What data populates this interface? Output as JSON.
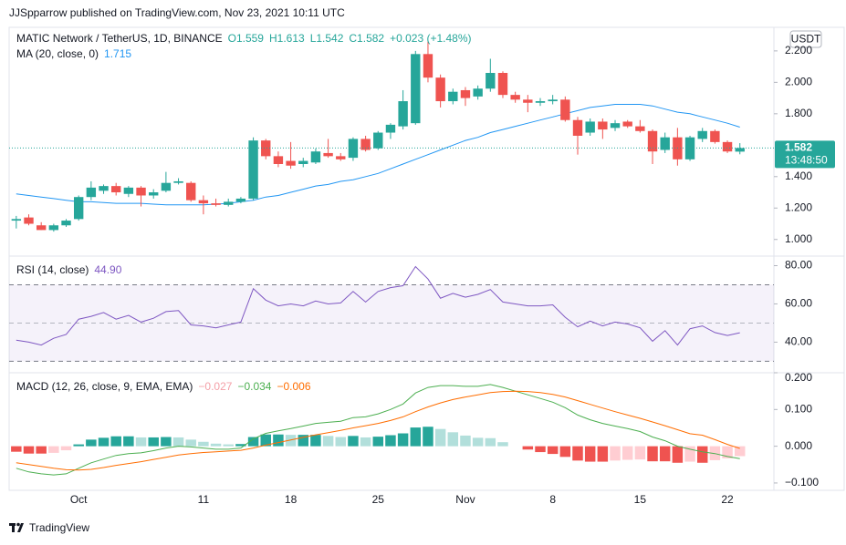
{
  "header": {
    "byline": "JJSpparrow published on TradingView.com, Nov 23, 2021 10:11 UTC",
    "brand": "TradingView"
  },
  "chart_data": [
    {
      "type": "candlestick",
      "title": "MATIC Network / TetherUS, 1D, BINANCE",
      "legend_values": [
        "O1.559",
        "H1.613",
        "L1.542",
        "C1.582",
        "+0.023 (+1.48%)"
      ],
      "axis_unit": "USDT",
      "last_price_label": "1.582",
      "countdown": "13:48:50",
      "up_color": "#26a69a",
      "down_color": "#ef5350",
      "categories": [
        null,
        null,
        null,
        null,
        null,
        "Oct",
        null,
        null,
        null,
        null,
        null,
        null,
        null,
        null,
        null,
        "11",
        null,
        null,
        null,
        null,
        null,
        null,
        "18",
        null,
        null,
        null,
        null,
        null,
        null,
        "25",
        null,
        null,
        null,
        null,
        null,
        null,
        "Nov",
        null,
        null,
        null,
        null,
        null,
        null,
        "8",
        null,
        null,
        null,
        null,
        null,
        null,
        "15",
        null,
        null,
        null,
        null,
        null,
        null,
        "22",
        null
      ],
      "open": [
        1.12,
        1.14,
        1.09,
        1.06,
        1.09,
        1.13,
        1.27,
        1.31,
        1.34,
        1.29,
        1.33,
        1.28,
        1.31,
        1.36,
        1.36,
        1.25,
        1.23,
        1.22,
        1.24,
        1.26,
        1.63,
        1.53,
        1.5,
        1.48,
        1.49,
        1.55,
        1.53,
        1.52,
        1.64,
        1.58,
        1.68,
        1.72,
        1.74,
        2.18,
        2.03,
        1.88,
        1.95,
        1.91,
        1.96,
        2.06,
        1.92,
        1.89,
        1.87,
        1.88,
        1.89,
        1.76,
        1.68,
        1.75,
        1.71,
        1.75,
        1.72,
        1.69,
        1.57,
        1.65,
        1.51,
        1.64,
        1.69,
        1.62,
        1.559
      ],
      "high": [
        1.15,
        1.16,
        1.11,
        1.1,
        1.13,
        1.28,
        1.37,
        1.35,
        1.36,
        1.34,
        1.34,
        1.32,
        1.43,
        1.39,
        1.37,
        1.28,
        1.26,
        1.26,
        1.27,
        1.65,
        1.64,
        1.56,
        1.62,
        1.52,
        1.58,
        1.64,
        1.55,
        1.65,
        1.66,
        1.69,
        1.74,
        1.95,
        2.2,
        2.26,
        2.05,
        1.96,
        1.97,
        1.98,
        2.15,
        2.07,
        1.94,
        1.92,
        1.9,
        1.92,
        1.91,
        1.78,
        1.77,
        1.77,
        1.76,
        1.76,
        1.76,
        1.7,
        1.68,
        1.71,
        1.66,
        1.71,
        1.7,
        1.63,
        1.613
      ],
      "low": [
        1.07,
        1.09,
        1.06,
        1.05,
        1.08,
        1.12,
        1.25,
        1.29,
        1.28,
        1.27,
        1.21,
        1.26,
        1.3,
        1.35,
        1.24,
        1.16,
        1.21,
        1.21,
        1.23,
        1.25,
        1.51,
        1.46,
        1.45,
        1.46,
        1.48,
        1.52,
        1.5,
        1.5,
        1.56,
        1.57,
        1.64,
        1.7,
        1.73,
        2.0,
        1.84,
        1.86,
        1.85,
        1.89,
        1.94,
        1.9,
        1.87,
        1.81,
        1.85,
        1.86,
        1.75,
        1.54,
        1.66,
        1.64,
        1.69,
        1.71,
        1.68,
        1.48,
        1.55,
        1.47,
        1.5,
        1.62,
        1.61,
        1.55,
        1.542
      ],
      "close": [
        1.13,
        1.1,
        1.06,
        1.09,
        1.12,
        1.27,
        1.33,
        1.34,
        1.3,
        1.33,
        1.28,
        1.3,
        1.36,
        1.37,
        1.25,
        1.23,
        1.22,
        1.24,
        1.26,
        1.63,
        1.53,
        1.48,
        1.47,
        1.5,
        1.56,
        1.53,
        1.51,
        1.64,
        1.57,
        1.68,
        1.73,
        1.88,
        2.18,
        2.03,
        1.88,
        1.94,
        1.9,
        1.96,
        2.06,
        1.92,
        1.89,
        1.87,
        1.88,
        1.89,
        1.76,
        1.66,
        1.75,
        1.7,
        1.74,
        1.72,
        1.69,
        1.56,
        1.65,
        1.51,
        1.65,
        1.69,
        1.62,
        1.56,
        1.582
      ],
      "series": [
        {
          "name": "MA (20, close, 0)",
          "value_label": "1.715",
          "color": "#2196f3",
          "values": [
            1.29,
            1.28,
            1.27,
            1.26,
            1.25,
            1.24,
            1.24,
            1.235,
            1.23,
            1.23,
            1.23,
            1.225,
            1.22,
            1.22,
            1.22,
            1.22,
            1.225,
            1.23,
            1.24,
            1.25,
            1.27,
            1.28,
            1.3,
            1.32,
            1.34,
            1.35,
            1.37,
            1.38,
            1.4,
            1.42,
            1.45,
            1.48,
            1.51,
            1.54,
            1.57,
            1.6,
            1.63,
            1.65,
            1.68,
            1.7,
            1.72,
            1.74,
            1.76,
            1.78,
            1.8,
            1.82,
            1.84,
            1.85,
            1.86,
            1.86,
            1.86,
            1.85,
            1.83,
            1.81,
            1.8,
            1.78,
            1.76,
            1.74,
            1.715
          ]
        }
      ],
      "ylim": [
        0.9,
        2.35
      ],
      "yticks": [
        {
          "value": 2.2,
          "label": "2.200"
        },
        {
          "value": 2.0,
          "label": "2.000"
        },
        {
          "value": 1.8,
          "label": "1.800"
        },
        {
          "value": 1.4,
          "label": "1.400"
        },
        {
          "value": 1.2,
          "label": "1.200"
        },
        {
          "value": 1.0,
          "label": "1.000"
        }
      ]
    },
    {
      "type": "line",
      "series": [
        {
          "name": "RSI (14, close)",
          "value_label": "44.90",
          "color": "#7e57c2",
          "values": [
            41,
            40,
            38.5,
            42,
            44,
            52,
            53.5,
            55.5,
            52,
            54,
            50.5,
            52.5,
            56,
            56.5,
            49,
            48.5,
            47.5,
            49,
            50.5,
            68,
            62,
            59,
            60,
            59,
            61.5,
            60,
            60.5,
            66.5,
            61,
            66.5,
            68.5,
            69.5,
            79.5,
            73,
            63,
            65.5,
            63.5,
            65,
            67.5,
            61,
            60,
            59,
            59,
            59.5,
            53,
            48,
            51,
            48.5,
            50.5,
            49.5,
            47.5,
            40.5,
            46,
            38.5,
            47,
            48.5,
            45,
            43.5,
            44.9
          ]
        }
      ],
      "band": [
        30,
        70
      ],
      "midline": 50,
      "band_color": "#7e57c2",
      "ylim": [
        24,
        85
      ],
      "yticks": [
        {
          "value": 80,
          "label": "80.00"
        },
        {
          "value": 60,
          "label": "60.00"
        },
        {
          "value": 40,
          "label": "40.00"
        }
      ]
    },
    {
      "type": "macd",
      "histogram": {
        "value_label": "−0.027",
        "colors": [
          "#26a69a",
          "#b2dfdb",
          "#ffcdd2",
          "#ef5350"
        ],
        "values": [
          -0.015,
          -0.02,
          -0.02,
          -0.018,
          -0.011,
          0.005,
          0.018,
          0.023,
          0.027,
          0.027,
          0.024,
          0.024,
          0.025,
          0.024,
          0.018,
          0.012,
          0.007,
          0.005,
          0.006,
          0.025,
          0.032,
          0.032,
          0.031,
          0.031,
          0.031,
          0.028,
          0.025,
          0.028,
          0.024,
          0.026,
          0.03,
          0.035,
          0.051,
          0.053,
          0.047,
          0.038,
          0.029,
          0.023,
          0.022,
          0.011,
          0.0,
          -0.009,
          -0.016,
          -0.021,
          -0.029,
          -0.039,
          -0.042,
          -0.042,
          -0.039,
          -0.037,
          -0.036,
          -0.041,
          -0.041,
          -0.045,
          -0.042,
          -0.045,
          -0.038,
          -0.033,
          -0.027
        ]
      },
      "title": "MACD (12, 26, close, 9, EMA, EMA)",
      "series": [
        {
          "name": "MACD",
          "value_label": "−0.034",
          "color": "#4caf50",
          "values": [
            -0.06,
            -0.07,
            -0.075,
            -0.078,
            -0.075,
            -0.06,
            -0.045,
            -0.035,
            -0.025,
            -0.02,
            -0.018,
            -0.012,
            -0.005,
            0.0,
            -0.002,
            -0.005,
            -0.008,
            -0.008,
            -0.005,
            0.02,
            0.035,
            0.042,
            0.048,
            0.055,
            0.062,
            0.065,
            0.068,
            0.078,
            0.08,
            0.088,
            0.1,
            0.115,
            0.145,
            0.16,
            0.165,
            0.165,
            0.163,
            0.163,
            0.168,
            0.16,
            0.15,
            0.14,
            0.13,
            0.12,
            0.105,
            0.085,
            0.072,
            0.062,
            0.055,
            0.048,
            0.04,
            0.025,
            0.015,
            0.0,
            -0.008,
            -0.015,
            -0.02,
            -0.028,
            -0.034
          ]
        },
        {
          "name": "Signal",
          "value_label": "−0.006",
          "color": "#ff6d00",
          "values": [
            -0.045,
            -0.05,
            -0.055,
            -0.06,
            -0.064,
            -0.065,
            -0.063,
            -0.058,
            -0.052,
            -0.047,
            -0.042,
            -0.036,
            -0.03,
            -0.024,
            -0.02,
            -0.017,
            -0.015,
            -0.013,
            -0.011,
            -0.005,
            0.003,
            0.01,
            0.017,
            0.024,
            0.031,
            0.037,
            0.043,
            0.05,
            0.056,
            0.062,
            0.07,
            0.08,
            0.094,
            0.107,
            0.118,
            0.127,
            0.134,
            0.14,
            0.146,
            0.149,
            0.15,
            0.149,
            0.146,
            0.141,
            0.134,
            0.124,
            0.114,
            0.104,
            0.094,
            0.085,
            0.076,
            0.066,
            0.056,
            0.045,
            0.034,
            0.03,
            0.018,
            0.005,
            -0.006
          ]
        }
      ],
      "ylim": [
        -0.12,
        0.2
      ],
      "yticks": [
        {
          "value": 0.2,
          "label": "0.200"
        },
        {
          "value": 0.1,
          "label": "0.100"
        },
        {
          "value": 0,
          "label": "0.000"
        },
        {
          "value": -0.1,
          "label": "−0.100"
        }
      ]
    }
  ]
}
